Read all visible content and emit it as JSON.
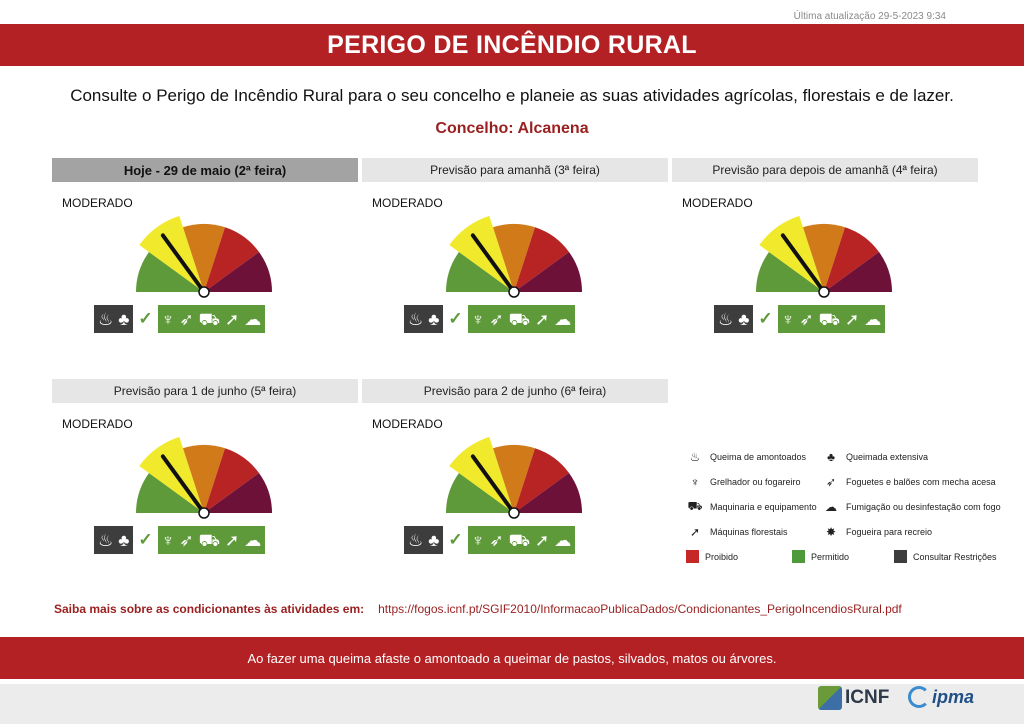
{
  "header": {
    "updated": "Última atualização 29-5-2023 9:34",
    "title": "PERIGO DE INCÊNDIO RURAL",
    "subtitle": "Consulte o Perigo de Incêndio Rural para o seu concelho e planeie as suas atividades agrícolas, florestais e de lazer.",
    "concelho": "Concelho: Alcanena"
  },
  "days": [
    {
      "label": "Hoje - 29 de maio (2ª feira)",
      "level": "MODERADO",
      "risk_class": 2
    },
    {
      "label": "Previsão para amanhã (3ª feira)",
      "level": "MODERADO",
      "risk_class": 2
    },
    {
      "label": "Previsão para depois de amanhã (4ª feira)",
      "level": "MODERADO",
      "risk_class": 2
    },
    {
      "label": "Previsão para 1 de junho (5ª feira)",
      "level": "MODERADO",
      "risk_class": 2
    },
    {
      "label": "Previsão para 2 de junho (6ª feira)",
      "level": "MODERADO",
      "risk_class": 2
    }
  ],
  "gauge_colors": [
    "#5f9a3a",
    "#f1e92b",
    "#d07a1a",
    "#b82424",
    "#6e1138"
  ],
  "activity_icons": {
    "restricted": [
      "burn-pile-icon",
      "extensive-burn-icon"
    ],
    "allowed": [
      "grill-icon",
      "rocket-icon",
      "machinery-icon",
      "forestry-machine-icon",
      "fumigation-icon"
    ]
  },
  "legend": {
    "items": [
      {
        "icon": "burn-pile-icon",
        "label": "Queima de amontoados"
      },
      {
        "icon": "extensive-burn-icon",
        "label": "Queimada extensiva"
      },
      {
        "icon": "grill-icon",
        "label": "Grelhador ou fogareiro"
      },
      {
        "icon": "rocket-icon",
        "label": "Foguetes e balões com mecha acesa"
      },
      {
        "icon": "machinery-icon",
        "label": "Maquinaria e equipamento"
      },
      {
        "icon": "fumigation-icon",
        "label": "Fumigação ou desinfestação com fogo"
      },
      {
        "icon": "forestry-machine-icon",
        "label": "Máquinas florestais"
      },
      {
        "icon": "campfire-icon",
        "label": "Fogueira para recreio"
      }
    ],
    "status": [
      {
        "label": "Proibido",
        "color": "#c62828"
      },
      {
        "label": "Permitido",
        "color": "#4e9a3a"
      },
      {
        "label": "Consultar Restrições",
        "color": "#3d3d3d"
      }
    ]
  },
  "more_info": {
    "label": "Saiba mais sobre as condicionantes às atividades em:",
    "url": "https://fogos.icnf.pt/SGIF2010/InformacaoPublicaDados/Condicionantes_PerigoIncendiosRural.pdf"
  },
  "footer": {
    "message": "Ao fazer uma queima afaste o amontoado a queimar de pastos, silvados, matos ou árvores.",
    "logo_icnf": "ICNF",
    "logo_ipma": "ipma"
  }
}
